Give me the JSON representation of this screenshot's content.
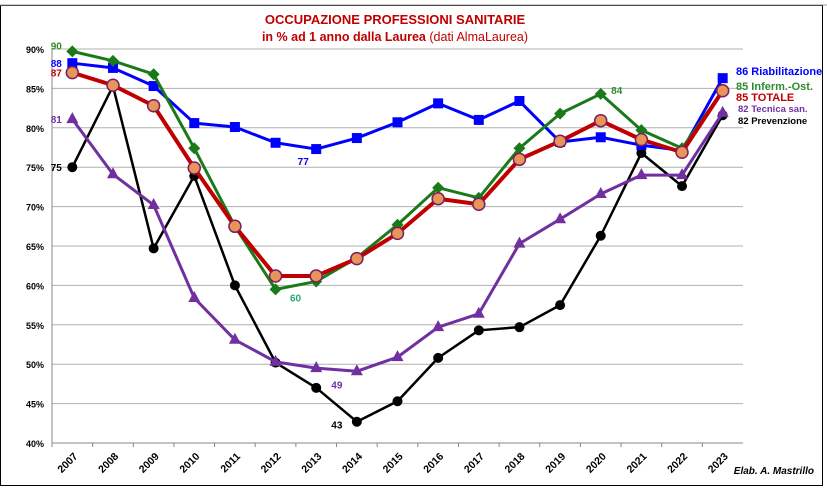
{
  "chart_data": {
    "type": "line",
    "title": "OCCUPAZIONE PROFESSIONI SANITARIE",
    "subtitle_bold": "in % ad 1 anno dalla Laurea",
    "subtitle_normal": "(dati AlmaLaurea)",
    "credit": "Elab. A. Mastrillo",
    "categories": [
      "2007",
      "2008",
      "2009",
      "2010",
      "2011",
      "2012",
      "2013",
      "2014",
      "2015",
      "2016",
      "2017",
      "2018",
      "2019",
      "2020",
      "2021",
      "2022",
      "2023"
    ],
    "ylim": [
      40,
      90
    ],
    "yticks": [
      "40%",
      "45%",
      "50%",
      "55%",
      "60%",
      "65%",
      "70%",
      "75%",
      "80%",
      "85%",
      "90%"
    ],
    "grid": true,
    "legend": "right (end-of-line labels)",
    "series": [
      {
        "name": "Riabilitazione",
        "end_label": "86 Riabilitazione",
        "color": "#0000ff",
        "marker": "square",
        "values": [
          88.2,
          87.6,
          85.3,
          80.6,
          80.1,
          78.1,
          77.3,
          78.7,
          80.7,
          83.1,
          81.0,
          83.4,
          78.2,
          78.8,
          77.8,
          77.1,
          86.3
        ]
      },
      {
        "name": "Inferm.-Ost.",
        "end_label": "85 Inferm.-Ost.",
        "color": "#1a7a1a",
        "marker": "diamond",
        "values": [
          89.7,
          88.5,
          86.8,
          77.4,
          67.5,
          59.5,
          60.5,
          63.5,
          67.7,
          72.4,
          71.1,
          77.4,
          81.8,
          84.3,
          79.7,
          77.4,
          84.7
        ]
      },
      {
        "name": "TOTALE",
        "end_label": "85  TOTALE",
        "color": "#c00000",
        "marker": "circle-orange",
        "values": [
          87.0,
          85.4,
          82.8,
          74.9,
          67.5,
          61.2,
          61.2,
          63.4,
          66.6,
          71.0,
          70.3,
          76.0,
          78.3,
          80.9,
          78.5,
          76.9,
          84.7
        ]
      },
      {
        "name": "Tecnica san.",
        "end_label": "82 Tecnica san.",
        "color": "#7030a0",
        "marker": "triangle",
        "values": [
          81.1,
          74.1,
          70.2,
          58.4,
          53.1,
          50.3,
          49.5,
          49.1,
          50.9,
          54.7,
          56.4,
          65.3,
          68.4,
          71.6,
          74.0,
          74.0,
          81.9
        ]
      },
      {
        "name": "Prevenzione",
        "end_label": "82 Prevenzione",
        "color": "#000000",
        "marker": "circle",
        "values": [
          75.0,
          85.3,
          64.7,
          73.9,
          60.0,
          50.2,
          47.0,
          42.7,
          45.3,
          50.8,
          54.3,
          54.7,
          57.5,
          66.3,
          76.8,
          72.6,
          81.6
        ]
      }
    ],
    "annotations": [
      {
        "text": "90",
        "series": "Inferm.-Ost.",
        "category": "2007"
      },
      {
        "text": "88",
        "series": "Riabilitazione",
        "category": "2007"
      },
      {
        "text": "87",
        "series": "TOTALE",
        "category": "2007"
      },
      {
        "text": "81",
        "series": "Tecnica san.",
        "category": "2007"
      },
      {
        "text": "75",
        "series": "Prevenzione",
        "category": "2007"
      },
      {
        "text": "77",
        "series": "Riabilitazione",
        "category": "2013"
      },
      {
        "text": "60",
        "series": "Inferm.-Ost.",
        "category": "2012"
      },
      {
        "text": "49",
        "series": "Tecnica san.",
        "category": "2014"
      },
      {
        "text": "43",
        "series": "Prevenzione",
        "category": "2014"
      },
      {
        "text": "84",
        "series": "Inferm.-Ost.",
        "category": "2020"
      }
    ]
  }
}
